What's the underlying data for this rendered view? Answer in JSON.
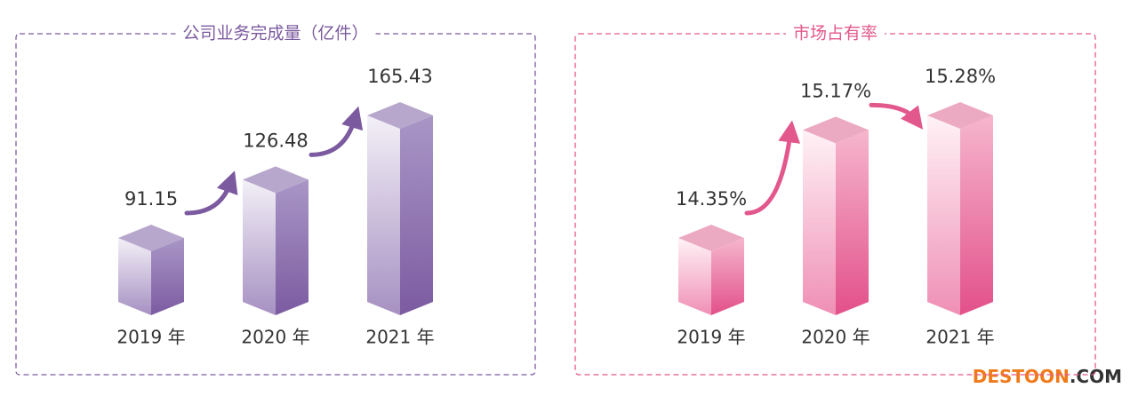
{
  "chart_data": [
    {
      "type": "bar3d",
      "title": "公司业务完成量（亿件）",
      "categories": [
        "2019 年",
        "2020 年",
        "2021 年"
      ],
      "values": [
        91.15,
        126.48,
        165.43
      ],
      "color": "#7b5a9f"
    },
    {
      "type": "bar3d",
      "title": "市场占有率",
      "categories": [
        "2019 年",
        "2020 年",
        "2021 年"
      ],
      "values": [
        14.35,
        15.17,
        15.28
      ],
      "value_labels": [
        "14.35%",
        "15.17%",
        "15.28%"
      ],
      "color": "#e3588c"
    }
  ],
  "watermark": {
    "brand": "DESTOON",
    "suffix": ".COM"
  }
}
